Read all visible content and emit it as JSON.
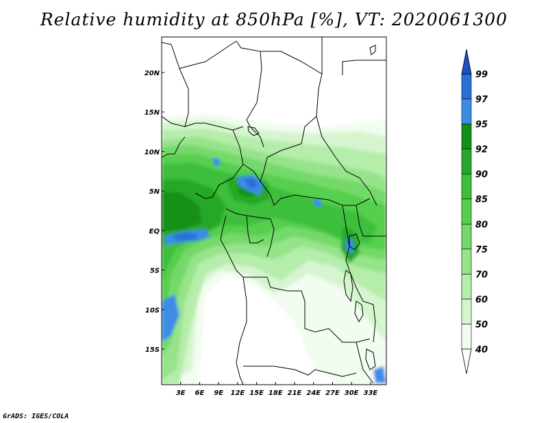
{
  "title": "Relative humidity at 850hPa [%], VT: 2020061300",
  "credit": "GrADS: IGES/COLA",
  "map": {
    "lon_range": [
      0,
      35.5
    ],
    "lat_range": [
      -19.5,
      24.5
    ],
    "lon_ticks": [
      3,
      6,
      9,
      12,
      15,
      18,
      21,
      24,
      27,
      30,
      33
    ],
    "lon_tick_labels": [
      "3E",
      "6E",
      "9E",
      "12E",
      "15E",
      "18E",
      "21E",
      "24E",
      "27E",
      "30E",
      "33E"
    ],
    "lat_ticks": [
      20,
      15,
      10,
      5,
      0,
      -5,
      -10,
      -15
    ],
    "lat_tick_labels": [
      "20N",
      "15N",
      "10N",
      "5N",
      "EQ",
      "5S",
      "10S",
      "15S"
    ]
  },
  "colorbar": {
    "levels": [
      40,
      50,
      60,
      70,
      75,
      80,
      85,
      90,
      92,
      95,
      97,
      99
    ],
    "labels": [
      "40",
      "50",
      "60",
      "70",
      "75",
      "80",
      "85",
      "90",
      "92",
      "95",
      "97",
      "99"
    ],
    "colors": [
      "#f2fcf0",
      "#d5f5cf",
      "#b5edab",
      "#96e38a",
      "#74d96b",
      "#55cf4e",
      "#3dbf3d",
      "#25a828",
      "#129018",
      "#3c8ce6",
      "#2a6fd6",
      "#1f4fc4"
    ],
    "below_color": "#ffffff",
    "above_color": "#1f4fc4"
  },
  "colors": {
    "border": "#000000",
    "land": "#ffffff"
  }
}
